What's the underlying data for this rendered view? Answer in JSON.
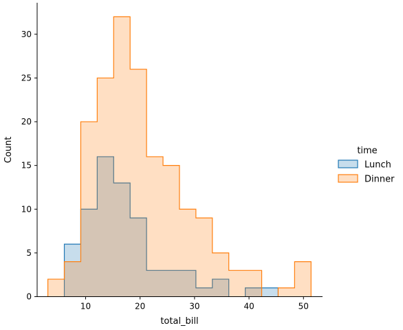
{
  "chart_data": {
    "type": "histogram-step",
    "xlabel": "total_bill",
    "ylabel": "Count",
    "xlim": [
      1.1,
      53.5
    ],
    "ylim": [
      0,
      33.6
    ],
    "x_ticks": [
      10,
      20,
      30,
      40,
      50
    ],
    "y_ticks": [
      0,
      5,
      10,
      15,
      20,
      25,
      30
    ],
    "bin_edges": [
      3.07,
      6.09,
      9.11,
      12.13,
      15.15,
      18.17,
      21.19,
      24.21,
      27.23,
      30.25,
      33.27,
      36.29,
      39.31,
      42.33,
      45.35,
      48.37,
      51.39
    ],
    "grid": false,
    "legend": {
      "title": "time",
      "placement": "right"
    },
    "series": [
      {
        "name": "Lunch",
        "stroke": "#1f77b4",
        "fill": "#1f77b4",
        "fill_opacity": 0.25,
        "counts": [
          0,
          6,
          10,
          16,
          13,
          9,
          3,
          3,
          3,
          1,
          2,
          0,
          1,
          1,
          0,
          0
        ]
      },
      {
        "name": "Dinner",
        "stroke": "#ff7f0e",
        "fill": "#ff7f0e",
        "fill_opacity": 0.25,
        "counts": [
          2,
          4,
          20,
          25,
          32,
          26,
          16,
          15,
          10,
          9,
          5,
          3,
          3,
          0,
          1,
          4
        ]
      }
    ]
  }
}
